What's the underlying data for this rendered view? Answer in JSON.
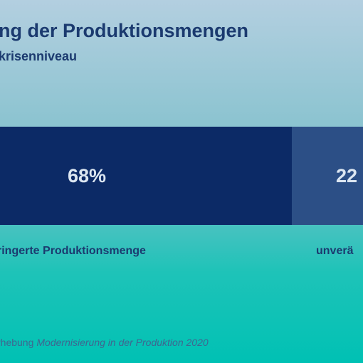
{
  "chart_data": {
    "type": "stacked-bar",
    "title": "ng der Produktionsmengen",
    "subtitle": "krisenniveau",
    "series": [
      {
        "name": "ringerte Produktionsmenge",
        "color": "#0c2a66",
        "values": [
          68
        ],
        "value_labels": [
          "68%"
        ]
      },
      {
        "name": "unverä",
        "color": "#2c4f86",
        "values": [
          22
        ],
        "value_labels": [
          "22"
        ]
      }
    ],
    "source": {
      "text": "rhebung",
      "italic": "Modernisierung in der Produktion 2020"
    }
  }
}
